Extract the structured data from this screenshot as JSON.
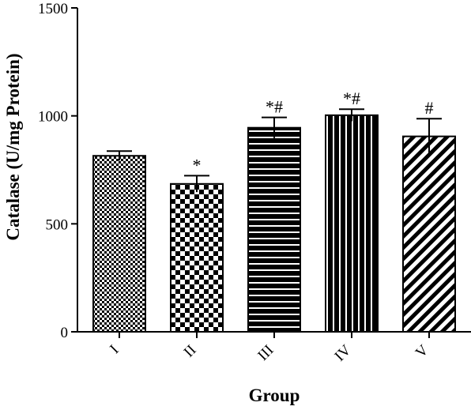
{
  "chart_data": {
    "type": "bar",
    "categories": [
      "I",
      "II",
      "III",
      "IV",
      "V"
    ],
    "values": [
      815,
      685,
      945,
      1003,
      905
    ],
    "errors": [
      22,
      38,
      48,
      28,
      82
    ],
    "annotations": [
      "",
      "*",
      "*#",
      "*#",
      "#"
    ],
    "patterns": [
      "fine-checker",
      "large-checker",
      "horizontal-stripes",
      "vertical-stripes",
      "diagonal-stripes"
    ],
    "xlabel": "Group",
    "ylabel": "Catalase (U/mg Protein)",
    "ylim": [
      0,
      1500
    ],
    "yticks": [
      0,
      500,
      1000,
      1500
    ],
    "grid": false,
    "colors": {
      "bar_fill": "#000000",
      "background": "#ffffff"
    }
  }
}
